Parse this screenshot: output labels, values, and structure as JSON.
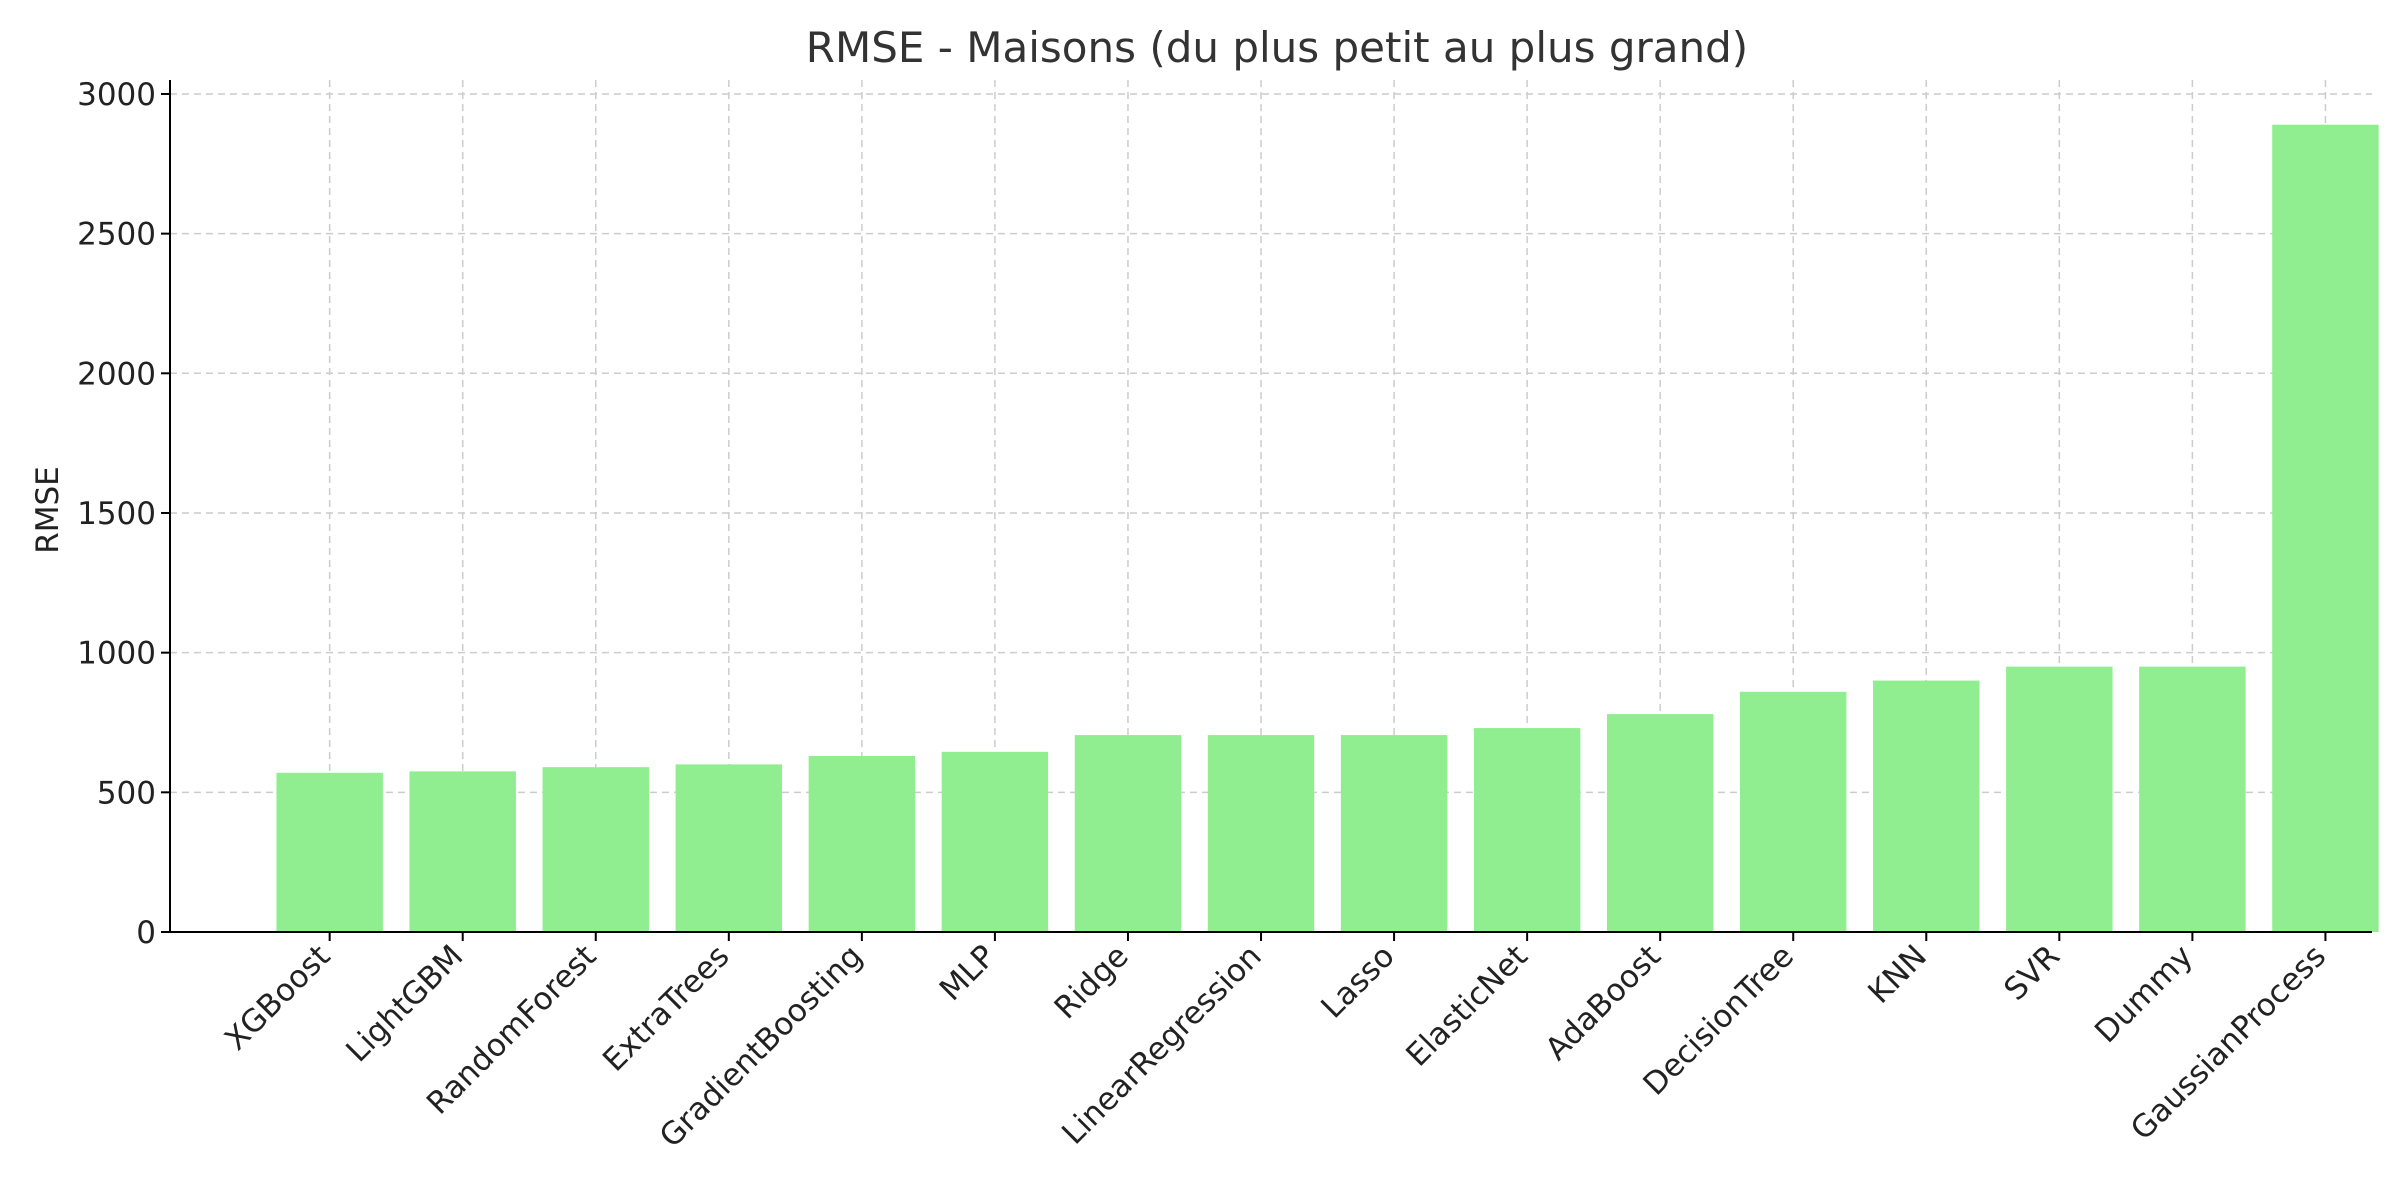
{
  "chart_data": {
    "type": "bar",
    "title": "RMSE - Maisons (du plus petit au plus grand)",
    "xlabel": "",
    "ylabel": "RMSE",
    "ylim": [
      0,
      3050
    ],
    "yticks": [
      0,
      500,
      1000,
      1500,
      2000,
      2500,
      3000
    ],
    "grid": true,
    "bar_color": "#90ee90",
    "categories": [
      "XGBoost",
      "LightGBM",
      "RandomForest",
      "ExtraTrees",
      "GradientBoosting",
      "MLP",
      "Ridge",
      "LinearRegression",
      "Lasso",
      "ElasticNet",
      "AdaBoost",
      "DecisionTree",
      "KNN",
      "SVR",
      "Dummy",
      "GaussianProcess"
    ],
    "values": [
      570,
      575,
      590,
      600,
      630,
      645,
      705,
      705,
      705,
      730,
      780,
      860,
      900,
      950,
      950,
      2890
    ]
  }
}
